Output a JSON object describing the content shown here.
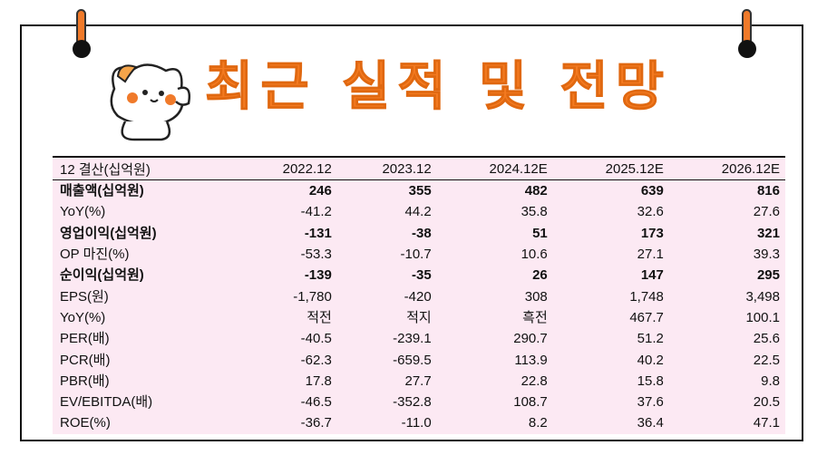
{
  "title": "최근 실적 및 전망",
  "table": {
    "headers": [
      "12 결산(십억원)",
      "2022.12",
      "2023.12",
      "2024.12E",
      "2025.12E",
      "2026.12E"
    ],
    "rows": [
      {
        "label": "매출액(십억원)",
        "values": [
          "246",
          "355",
          "482",
          "639",
          "816"
        ],
        "bold": true
      },
      {
        "label": "YoY(%)",
        "values": [
          "-41.2",
          "44.2",
          "35.8",
          "32.6",
          "27.6"
        ],
        "bold": false
      },
      {
        "label": "영업이익(십억원)",
        "values": [
          "-131",
          "-38",
          "51",
          "173",
          "321"
        ],
        "bold": true
      },
      {
        "label": "OP 마진(%)",
        "values": [
          "-53.3",
          "-10.7",
          "10.6",
          "27.1",
          "39.3"
        ],
        "bold": false
      },
      {
        "label": "순이익(십억원)",
        "values": [
          "-139",
          "-35",
          "26",
          "147",
          "295"
        ],
        "bold": true
      },
      {
        "label": "EPS(원)",
        "values": [
          "-1,780",
          "-420",
          "308",
          "1,748",
          "3,498"
        ],
        "bold": false
      },
      {
        "label": "YoY(%)",
        "values": [
          "적전",
          "적지",
          "흑전",
          "467.7",
          "100.1"
        ],
        "bold": false
      },
      {
        "label": "PER(배)",
        "values": [
          "-40.5",
          "-239.1",
          "290.7",
          "51.2",
          "25.6"
        ],
        "bold": false
      },
      {
        "label": "PCR(배)",
        "values": [
          "-62.3",
          "-659.5",
          "113.9",
          "40.2",
          "22.5"
        ],
        "bold": false
      },
      {
        "label": "PBR(배)",
        "values": [
          "17.8",
          "27.7",
          "22.8",
          "15.8",
          "9.8"
        ],
        "bold": false
      },
      {
        "label": "EV/EBITDA(배)",
        "values": [
          "-46.5",
          "-352.8",
          "108.7",
          "37.6",
          "20.5"
        ],
        "bold": false
      },
      {
        "label": "ROE(%)",
        "values": [
          "-36.7",
          "-11.0",
          "8.2",
          "36.4",
          "47.1"
        ],
        "bold": false
      }
    ]
  },
  "colors": {
    "accent": "#f47a20",
    "table_bg": "#fce9f3"
  }
}
